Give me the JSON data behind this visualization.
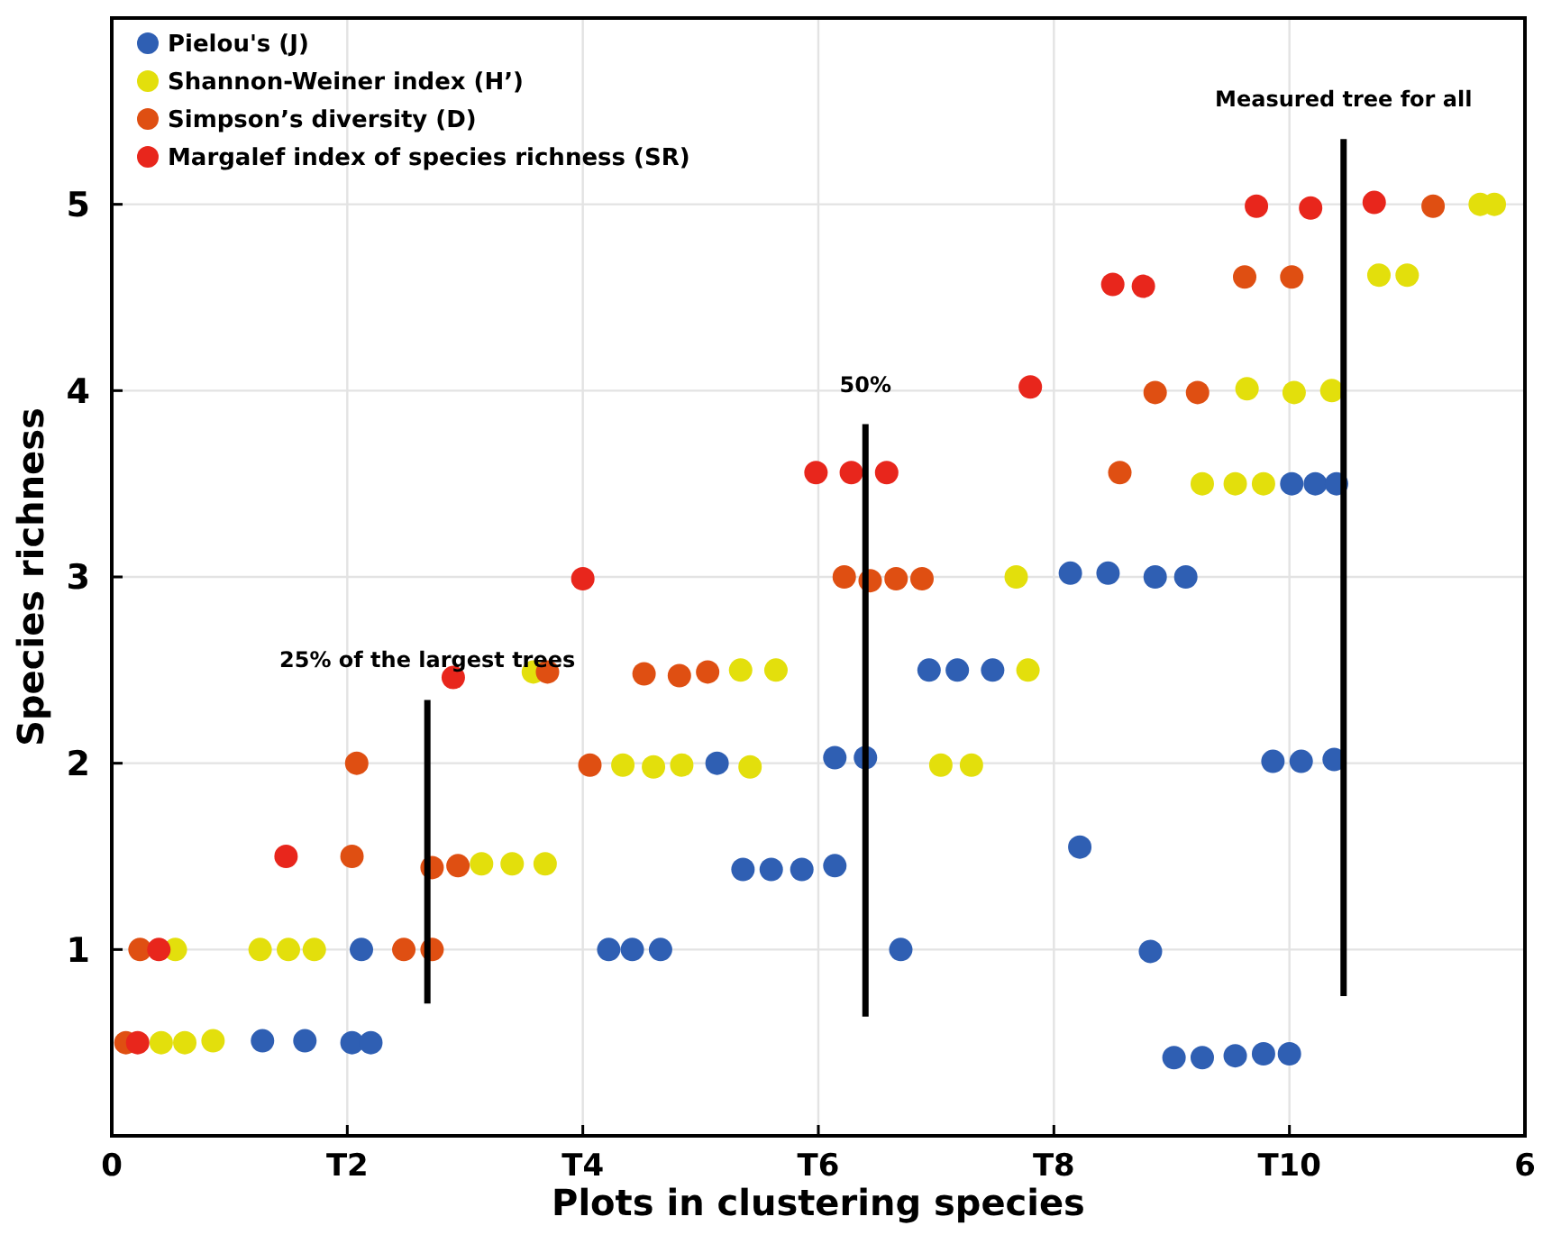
{
  "chart_data": {
    "type": "scatter",
    "xlabel": "Plots in clustering species",
    "ylabel": "Species richness",
    "xlim": [
      0,
      6
    ],
    "ylim": [
      0,
      6
    ],
    "xticks": [
      0,
      {
        "value": 1,
        "label": "T2"
      },
      {
        "value": 2,
        "label": "T4"
      },
      {
        "value": 3,
        "label": "T6"
      },
      {
        "value": 4,
        "label": "T8"
      },
      {
        "value": 5,
        "label": "T10"
      },
      6
    ],
    "yticks": [
      1,
      2,
      3,
      4,
      5
    ],
    "grid": true,
    "legend": "top left",
    "marker": "circle",
    "series": [
      {
        "name": "Pielou's (J)",
        "color": "#2f5fb3",
        "x": [
          0.64,
          0.82,
          1.02,
          1.1,
          1.06,
          2.11,
          2.21,
          2.33,
          2.57,
          2.68,
          2.8,
          2.93,
          3.07,
          3.07,
          3.2,
          3.35,
          3.47,
          3.59,
          3.74,
          4.07,
          4.23,
          4.43,
          4.56,
          4.11,
          4.41,
          4.51,
          4.63,
          4.77,
          4.89,
          5.0,
          4.93,
          5.05,
          5.19,
          5.01,
          5.11,
          5.2
        ],
        "values": [
          0.51,
          0.51,
          0.5,
          0.5,
          1.0,
          1.0,
          1.0,
          1.0,
          2.0,
          1.43,
          1.43,
          1.43,
          1.45,
          2.03,
          2.03,
          1.0,
          2.5,
          2.5,
          2.5,
          3.02,
          3.02,
          3.0,
          3.0,
          1.55,
          0.99,
          0.42,
          0.42,
          0.43,
          0.44,
          0.44,
          2.01,
          2.01,
          2.02,
          3.5,
          3.5,
          3.5
        ]
      },
      {
        "name": "Shannon-Weiner index (H’)",
        "color": "#e3df0c",
        "x": [
          0.21,
          0.31,
          0.43,
          0.27,
          0.63,
          0.75,
          0.86,
          1.57,
          1.7,
          1.84,
          1.79,
          2.17,
          2.3,
          2.42,
          2.71,
          2.67,
          2.82,
          3.52,
          3.65,
          3.84,
          3.89,
          4.63,
          4.77,
          4.89,
          4.82,
          5.02,
          5.18,
          5.38,
          5.5,
          5.81,
          5.87
        ],
        "values": [
          0.5,
          0.5,
          0.51,
          1.0,
          1.0,
          1.0,
          1.0,
          1.46,
          1.46,
          1.46,
          2.49,
          1.99,
          1.98,
          1.99,
          1.98,
          2.5,
          2.5,
          1.99,
          1.99,
          3.0,
          2.5,
          3.5,
          3.5,
          3.5,
          4.01,
          3.99,
          4.0,
          4.62,
          4.62,
          5.0,
          5.0
        ]
      },
      {
        "name": "Simpson’s diversity (D)",
        "color": "#df4f12",
        "x": [
          0.06,
          0.12,
          1.02,
          1.04,
          1.24,
          1.36,
          1.36,
          1.47,
          1.85,
          2.03,
          2.26,
          2.41,
          2.53,
          3.11,
          3.22,
          3.33,
          3.44,
          4.28,
          4.43,
          4.61,
          4.81,
          5.01,
          5.61
        ],
        "values": [
          0.5,
          1.0,
          1.5,
          2.0,
          1.0,
          1.0,
          1.44,
          1.45,
          2.49,
          1.99,
          2.48,
          2.47,
          2.49,
          3.0,
          2.98,
          2.99,
          2.99,
          3.56,
          3.99,
          3.99,
          4.61,
          4.61,
          4.99
        ]
      },
      {
        "name": "Margalef index of species richness (SR)",
        "color": "#e8261c",
        "x": [
          0.11,
          0.2,
          0.74,
          1.45,
          2.0,
          2.99,
          3.14,
          3.29,
          3.9,
          4.25,
          4.38,
          4.86,
          5.09,
          5.36
        ],
        "values": [
          0.5,
          1.0,
          1.5,
          2.46,
          2.99,
          3.56,
          3.56,
          3.56,
          4.02,
          4.57,
          4.56,
          4.99,
          4.98,
          5.01
        ]
      },
      {
        "type": "line",
        "color": "#000000",
        "marker": "none",
        "x": [
          1.34,
          1.34
        ],
        "values": [
          0.71,
          2.34
        ]
      },
      {
        "type": "line",
        "color": "#000000",
        "marker": "none",
        "x": [
          3.2,
          3.2
        ],
        "values": [
          0.64,
          3.82
        ]
      },
      {
        "type": "line",
        "color": "#000000",
        "marker": "none",
        "x": [
          5.23,
          5.23
        ],
        "values": [
          0.75,
          5.35
        ]
      }
    ],
    "annotations": [
      {
        "text": "25% of the largest trees",
        "x": 1.34,
        "y": 2.34
      },
      {
        "text": "50%",
        "x": 3.2,
        "y": 3.82
      },
      {
        "text": "Measured tree for all",
        "x": 5.23,
        "y": 5.35
      }
    ]
  }
}
